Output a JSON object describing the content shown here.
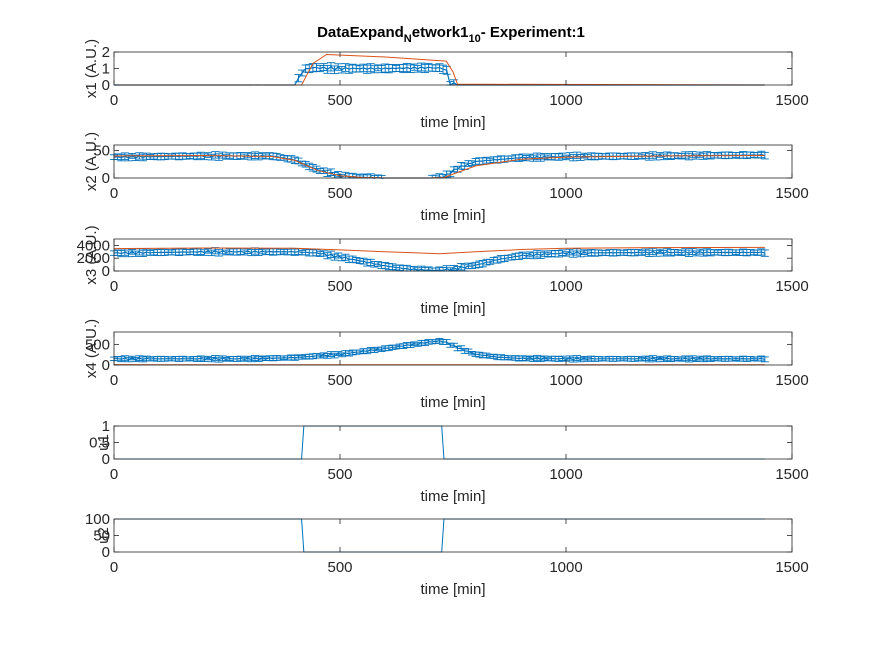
{
  "figure": {
    "title_main": "DataExpand",
    "title_sub1": "N",
    "title_mid": "etwork1",
    "title_sub2": "10",
    "title_tail": "- Experiment:1"
  },
  "colors": {
    "data": "#0072BD",
    "model": "#D95319",
    "axis": "#262626",
    "background": "#ffffff"
  },
  "chart_data": [
    {
      "type": "line",
      "ylabel": "x1 (A.U.)",
      "xlabel": "time [min]",
      "xlim": [
        0,
        1500
      ],
      "ylim": [
        0,
        2
      ],
      "xticks": [
        0,
        500,
        1000,
        1500
      ],
      "yticks": [
        0,
        1,
        2
      ],
      "series": [
        {
          "kind": "errorbar",
          "x": [
            0,
            400,
            420,
            440,
            500,
            600,
            700,
            735,
            740,
            760,
            1440
          ],
          "y": [
            0,
            0,
            0.95,
            1.05,
            1.0,
            1.0,
            1.05,
            1.0,
            0.1,
            0,
            0
          ],
          "err": 0.25
        },
        {
          "kind": "model",
          "x": [
            0,
            415,
            440,
            470,
            600,
            735,
            750,
            760,
            1440
          ],
          "y": [
            0,
            0,
            1.3,
            1.85,
            1.7,
            1.45,
            0.8,
            0.05,
            0
          ]
        }
      ]
    },
    {
      "type": "line",
      "ylabel": "x2 (A.U.)",
      "xlabel": "time [min]",
      "xlim": [
        0,
        1500
      ],
      "ylim": [
        0,
        60
      ],
      "xticks": [
        0,
        500,
        1000,
        1500
      ],
      "yticks": [
        0,
        50
      ],
      "series": [
        {
          "kind": "errorbar",
          "x": [
            0,
            200,
            350,
            400,
            450,
            500,
            550,
            600,
            700,
            730,
            760,
            800,
            900,
            1000,
            1200,
            1440
          ],
          "y": [
            38,
            40,
            40,
            33,
            15,
            4,
            1,
            0,
            0,
            2,
            18,
            30,
            37,
            39,
            40,
            42
          ],
          "err": 6
        },
        {
          "kind": "model",
          "x": [
            0,
            200,
            350,
            400,
            450,
            500,
            550,
            600,
            700,
            730,
            800,
            900,
            1000,
            1200,
            1440
          ],
          "y": [
            40,
            41,
            39,
            32,
            14,
            4,
            1,
            0,
            0,
            1,
            22,
            34,
            38,
            40,
            41
          ]
        }
      ]
    },
    {
      "type": "line",
      "ylabel": "x3 (A.U.)",
      "xlabel": "time [min]",
      "xlim": [
        0,
        1500
      ],
      "ylim": [
        0,
        5000
      ],
      "xticks": [
        0,
        500,
        1000,
        1500
      ],
      "yticks": [
        0,
        2000,
        4000
      ],
      "series": [
        {
          "kind": "errorbar",
          "x": [
            0,
            200,
            400,
            450,
            500,
            550,
            600,
            650,
            700,
            720,
            750,
            800,
            850,
            900,
            1000,
            1200,
            1440
          ],
          "y": [
            2800,
            3000,
            3000,
            2800,
            2200,
            1500,
            800,
            300,
            100,
            100,
            300,
            900,
            1800,
            2400,
            2800,
            2900,
            2900
          ],
          "err": 500
        },
        {
          "kind": "model",
          "x": [
            0,
            200,
            400,
            500,
            600,
            700,
            720,
            800,
            900,
            1000,
            1200,
            1440
          ],
          "y": [
            3500,
            3600,
            3550,
            3300,
            3000,
            2750,
            2700,
            3000,
            3350,
            3550,
            3650,
            3700
          ]
        }
      ]
    },
    {
      "type": "line",
      "ylabel": "x4 (A.U.)",
      "xlabel": "time [min]",
      "xlim": [
        0,
        1500
      ],
      "ylim": [
        0,
        800
      ],
      "xticks": [
        0,
        500,
        1000,
        1500
      ],
      "yticks": [
        0,
        500
      ],
      "series": [
        {
          "kind": "errorbar",
          "x": [
            0,
            300,
            400,
            500,
            550,
            600,
            650,
            700,
            720,
            730,
            760,
            800,
            850,
            900,
            1000,
            1440
          ],
          "y": [
            150,
            150,
            180,
            260,
            330,
            400,
            480,
            560,
            580,
            570,
            420,
            260,
            190,
            160,
            150,
            150
          ],
          "err": 60
        },
        {
          "kind": "model",
          "x": [
            0,
            100,
            1440
          ],
          "y": [
            10,
            5,
            5
          ]
        }
      ]
    },
    {
      "type": "line",
      "ylabel": "u1",
      "xlabel": "time [min]",
      "xlim": [
        0,
        1500
      ],
      "ylim": [
        0,
        1
      ],
      "xticks": [
        0,
        500,
        1000,
        1500
      ],
      "yticks": [
        0,
        0.5,
        1
      ],
      "series": [
        {
          "kind": "input",
          "x": [
            0,
            415,
            420,
            725,
            730,
            1440
          ],
          "y": [
            0,
            0,
            1,
            1,
            0,
            0
          ]
        }
      ]
    },
    {
      "type": "line",
      "ylabel": "u2",
      "xlabel": "time [min]",
      "xlim": [
        0,
        1500
      ],
      "ylim": [
        0,
        100
      ],
      "xticks": [
        0,
        500,
        1000,
        1500
      ],
      "yticks": [
        0,
        50,
        100
      ],
      "series": [
        {
          "kind": "input",
          "x": [
            0,
            415,
            420,
            725,
            730,
            1440
          ],
          "y": [
            100,
            100,
            0,
            0,
            100,
            100
          ]
        }
      ]
    }
  ]
}
